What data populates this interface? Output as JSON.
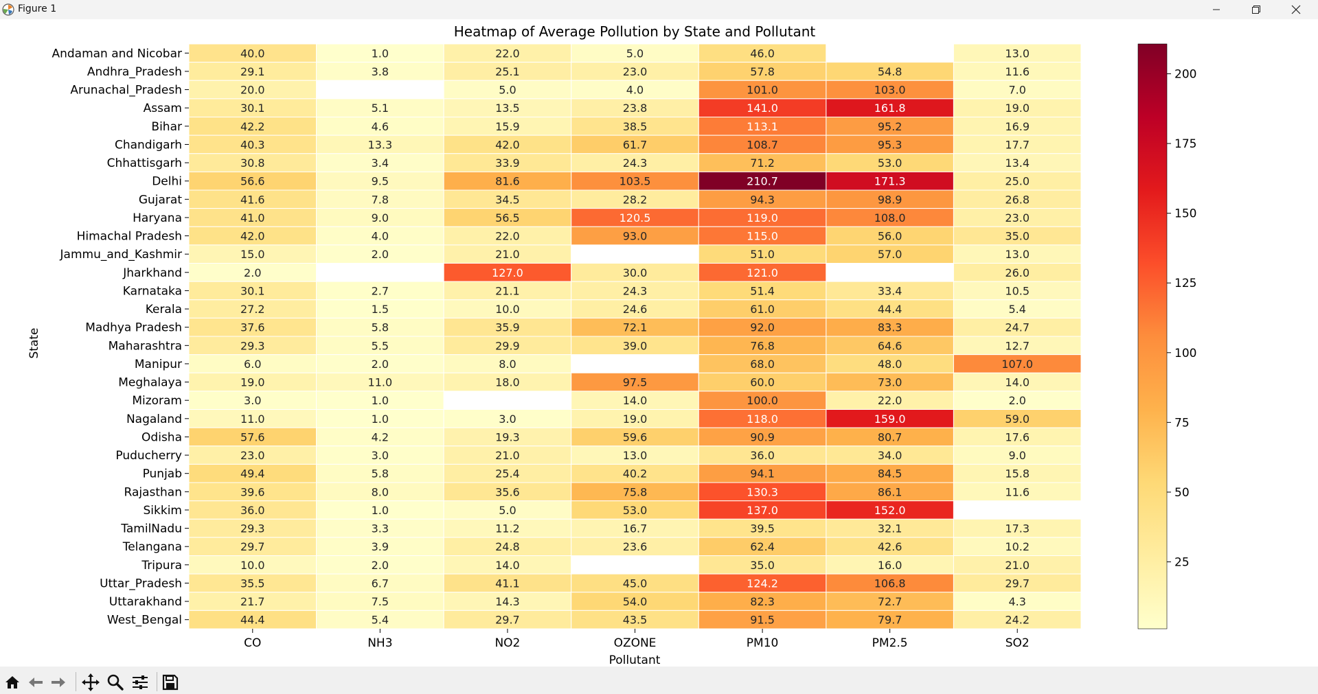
{
  "window": {
    "title": "Figure 1",
    "icons": [
      "matplotlib-icon",
      "minimize-icon",
      "restore-icon",
      "close-icon"
    ]
  },
  "toolbar": {
    "tools": [
      "home-icon",
      "back-arrow-icon",
      "forward-arrow-icon",
      "pan-icon",
      "zoom-icon",
      "configure-subplots-icon",
      "save-icon"
    ]
  },
  "chart_data": {
    "type": "heatmap",
    "title": "Heatmap of Average Pollution by State and Pollutant",
    "xlabel": "Pollutant",
    "ylabel": "State",
    "x_categories": [
      "CO",
      "NH3",
      "NO2",
      "OZONE",
      "PM10",
      "PM2.5",
      "SO2"
    ],
    "y_categories": [
      "Andaman and Nicobar",
      "Andhra_Pradesh",
      "Arunachal_Pradesh",
      "Assam",
      "Bihar",
      "Chandigarh",
      "Chhattisgarh",
      "Delhi",
      "Gujarat",
      "Haryana",
      "Himachal Pradesh",
      "Jammu_and_Kashmir",
      "Jharkhand",
      "Karnataka",
      "Kerala",
      "Madhya Pradesh",
      "Maharashtra",
      "Manipur",
      "Meghalaya",
      "Mizoram",
      "Nagaland",
      "Odisha",
      "Puducherry",
      "Punjab",
      "Rajasthan",
      "Sikkim",
      "TamilNadu",
      "Telangana",
      "Tripura",
      "Uttar_Pradesh",
      "Uttarakhand",
      "West_Bengal"
    ],
    "values": [
      [
        40.0,
        1.0,
        22.0,
        5.0,
        46.0,
        null,
        13.0
      ],
      [
        29.1,
        3.8,
        25.1,
        23.0,
        57.8,
        54.8,
        11.6
      ],
      [
        20.0,
        null,
        5.0,
        4.0,
        101.0,
        103.0,
        7.0
      ],
      [
        30.1,
        5.1,
        13.5,
        23.8,
        141.0,
        161.8,
        19.0
      ],
      [
        42.2,
        4.6,
        15.9,
        38.5,
        113.1,
        95.2,
        16.9
      ],
      [
        40.3,
        13.3,
        42.0,
        61.7,
        108.7,
        95.3,
        17.7
      ],
      [
        30.8,
        3.4,
        33.9,
        24.3,
        71.2,
        53.0,
        13.4
      ],
      [
        56.6,
        9.5,
        81.6,
        103.5,
        210.7,
        171.3,
        25.0
      ],
      [
        41.6,
        7.8,
        34.5,
        28.2,
        94.3,
        98.9,
        26.8
      ],
      [
        41.0,
        9.0,
        56.5,
        120.5,
        119.0,
        108.0,
        23.0
      ],
      [
        42.0,
        4.0,
        22.0,
        93.0,
        115.0,
        56.0,
        35.0
      ],
      [
        15.0,
        2.0,
        21.0,
        null,
        51.0,
        57.0,
        13.0
      ],
      [
        2.0,
        null,
        127.0,
        30.0,
        121.0,
        null,
        26.0
      ],
      [
        30.1,
        2.7,
        21.1,
        24.3,
        51.4,
        33.4,
        10.5
      ],
      [
        27.2,
        1.5,
        10.0,
        24.6,
        61.0,
        44.4,
        5.4
      ],
      [
        37.6,
        5.8,
        35.9,
        72.1,
        92.0,
        83.3,
        24.7
      ],
      [
        29.3,
        5.5,
        29.9,
        39.0,
        76.8,
        64.6,
        12.7
      ],
      [
        6.0,
        2.0,
        8.0,
        null,
        68.0,
        48.0,
        107.0
      ],
      [
        19.0,
        11.0,
        18.0,
        97.5,
        60.0,
        73.0,
        14.0
      ],
      [
        3.0,
        1.0,
        null,
        14.0,
        100.0,
        22.0,
        2.0
      ],
      [
        11.0,
        1.0,
        3.0,
        19.0,
        118.0,
        159.0,
        59.0
      ],
      [
        57.6,
        4.2,
        19.3,
        59.6,
        90.9,
        80.7,
        17.6
      ],
      [
        23.0,
        3.0,
        21.0,
        13.0,
        36.0,
        34.0,
        9.0
      ],
      [
        49.4,
        5.8,
        25.4,
        40.2,
        94.1,
        84.5,
        15.8
      ],
      [
        39.6,
        8.0,
        35.6,
        75.8,
        130.3,
        86.1,
        11.6
      ],
      [
        36.0,
        1.0,
        5.0,
        53.0,
        137.0,
        152.0,
        null
      ],
      [
        29.3,
        3.3,
        11.2,
        16.7,
        39.5,
        32.1,
        17.3
      ],
      [
        29.7,
        3.9,
        24.8,
        23.6,
        62.4,
        42.6,
        10.2
      ],
      [
        10.0,
        2.0,
        14.0,
        null,
        35.0,
        16.0,
        21.0
      ],
      [
        35.5,
        6.7,
        41.1,
        45.0,
        124.2,
        106.8,
        29.7
      ],
      [
        21.7,
        7.5,
        14.3,
        54.0,
        82.3,
        72.7,
        4.3
      ],
      [
        44.4,
        5.4,
        29.7,
        43.5,
        91.5,
        79.7,
        24.2
      ]
    ],
    "value_format": "one decimal place",
    "colormap": "YlOrRd",
    "colormap_stops": [
      "#ffffcc",
      "#ffeda0",
      "#fed976",
      "#feb24c",
      "#fd8d3c",
      "#fc4e2a",
      "#e31a1c",
      "#bd0026",
      "#800026"
    ],
    "vmin": 1.0,
    "vmax": 210.7,
    "colorbar_ticks": [
      25,
      50,
      75,
      100,
      125,
      150,
      175,
      200
    ],
    "missing_cell_color": "#ffffff",
    "light_text_above": 110
  }
}
